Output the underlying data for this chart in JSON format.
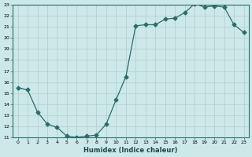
{
  "x": [
    0,
    1,
    2,
    3,
    4,
    5,
    6,
    7,
    8,
    9,
    10,
    11,
    12,
    13,
    14,
    15,
    16,
    17,
    18,
    19,
    20,
    21,
    22,
    23
  ],
  "y": [
    15.5,
    15.3,
    13.3,
    12.2,
    11.9,
    11.1,
    11.0,
    11.1,
    11.2,
    12.2,
    14.4,
    16.5,
    21.1,
    21.2,
    21.2,
    21.7,
    21.8,
    22.3,
    23.1,
    22.8,
    22.9,
    22.8,
    21.2,
    20.5
  ],
  "xlim": [
    -0.5,
    23.5
  ],
  "ylim": [
    11,
    23
  ],
  "yticks": [
    11,
    12,
    13,
    14,
    15,
    16,
    17,
    18,
    19,
    20,
    21,
    22,
    23
  ],
  "xticks": [
    0,
    1,
    2,
    3,
    4,
    5,
    6,
    7,
    8,
    9,
    10,
    11,
    12,
    13,
    14,
    15,
    16,
    17,
    18,
    19,
    20,
    21,
    22,
    23
  ],
  "xlabel": "Humidex (Indice chaleur)",
  "line_color": "#2e6b6b",
  "marker": "D",
  "marker_size": 2.5,
  "bg_color": "#cde8e8",
  "grid_color": "#aecece",
  "title": ""
}
